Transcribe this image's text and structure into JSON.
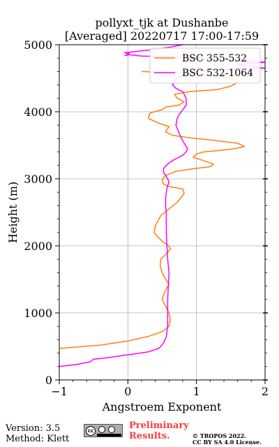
{
  "chart_data": {
    "type": "line",
    "title": "pollyxt_tjk at Dushanbe",
    "subtitle": "[Averaged] 20220717 17:00-17:59",
    "xlabel": "Angstroem Exponent",
    "ylabel": "Height (m)",
    "xlim": [
      -1,
      2
    ],
    "ylim": [
      0,
      5000
    ],
    "xticks": [
      "−1",
      "0",
      "1",
      "2"
    ],
    "yticks": [
      "0",
      "1000",
      "2000",
      "3000",
      "4000",
      "5000"
    ],
    "grid": true,
    "legend_position": "top-right",
    "series": [
      {
        "name": "BSC 355-532",
        "color": "#ff7f0e",
        "x": [
          -1.0,
          -0.4,
          0.0,
          0.3,
          0.5,
          0.6,
          0.62,
          0.6,
          0.55,
          0.5,
          0.53,
          0.6,
          0.55,
          0.5,
          0.47,
          0.48,
          0.55,
          0.62,
          0.6,
          0.52,
          0.42,
          0.38,
          0.4,
          0.48,
          0.6,
          0.72,
          0.82,
          0.8,
          0.62,
          0.52,
          0.5,
          0.55,
          0.7,
          0.95,
          1.2,
          1.25,
          1.05,
          0.95,
          1.0,
          1.1,
          1.5,
          1.7,
          1.6,
          1.2,
          0.9,
          0.65,
          0.55,
          0.6,
          0.45,
          0.3,
          0.32,
          0.5,
          0.55,
          0.75,
          0.82,
          0.72,
          0.68,
          0.9,
          1.3,
          1.5,
          1.6,
          1.5,
          1.15,
          0.7,
          0.2
        ],
        "y": [
          470,
          520,
          580,
          650,
          720,
          800,
          900,
          1000,
          1100,
          1200,
          1300,
          1430,
          1500,
          1600,
          1700,
          1800,
          1870,
          1950,
          2000,
          2050,
          2150,
          2200,
          2300,
          2450,
          2550,
          2650,
          2780,
          2850,
          2880,
          2920,
          2990,
          3050,
          3110,
          3150,
          3180,
          3220,
          3290,
          3320,
          3370,
          3400,
          3440,
          3480,
          3530,
          3580,
          3610,
          3650,
          3700,
          3780,
          3830,
          3900,
          3980,
          4030,
          4070,
          4100,
          4150,
          4200,
          4260,
          4300,
          4330,
          4380,
          4440,
          4500,
          4550,
          4580,
          4600
        ]
      },
      {
        "name": "BSC 532-1064",
        "color": "#ff00ff",
        "x": [
          -1.0,
          -0.75,
          -0.55,
          -0.5,
          -0.3,
          -0.1,
          0.1,
          0.3,
          0.45,
          0.52,
          0.56,
          0.58,
          0.58,
          0.58,
          0.59,
          0.6,
          0.58,
          0.57,
          0.56,
          0.56,
          0.56,
          0.55,
          0.55,
          0.56,
          0.57,
          0.58,
          0.6,
          0.58,
          0.55,
          0.52,
          0.52,
          0.56,
          0.62,
          0.7,
          0.8,
          0.85,
          0.87,
          0.84,
          0.78,
          0.74,
          0.7,
          0.72,
          0.74,
          0.78,
          0.85,
          0.85,
          0.8,
          0.7,
          0.65,
          0.7,
          0.9,
          1.3,
          2.0,
          1.6,
          2.0,
          1.2,
          0.6,
          0.2,
          0.02,
          -0.04,
          0.02,
          -0.05,
          0.3,
          0.6,
          0.8
        ],
        "y": [
          200,
          230,
          270,
          310,
          330,
          360,
          390,
          420,
          470,
          550,
          650,
          800,
          1000,
          1200,
          1400,
          1600,
          1800,
          2000,
          2200,
          2400,
          2500,
          2600,
          2700,
          2800,
          2850,
          2900,
          2950,
          3000,
          3050,
          3100,
          3150,
          3200,
          3250,
          3300,
          3350,
          3400,
          3450,
          3500,
          3600,
          3700,
          3800,
          3900,
          3950,
          4000,
          4100,
          4200,
          4300,
          4350,
          4400,
          4500,
          4590,
          4630,
          4650,
          4700,
          4740,
          4790,
          4820,
          4830,
          4850,
          4840,
          4870,
          4880,
          4920,
          4960,
          5000
        ]
      }
    ]
  },
  "footer": {
    "version": "Version: 3.5",
    "method": "Method: Klett",
    "preliminary": [
      "Preliminary",
      "Results."
    ],
    "tropos": [
      "© TROPOS 2022.",
      "CC BY SA 4.0 License."
    ]
  }
}
